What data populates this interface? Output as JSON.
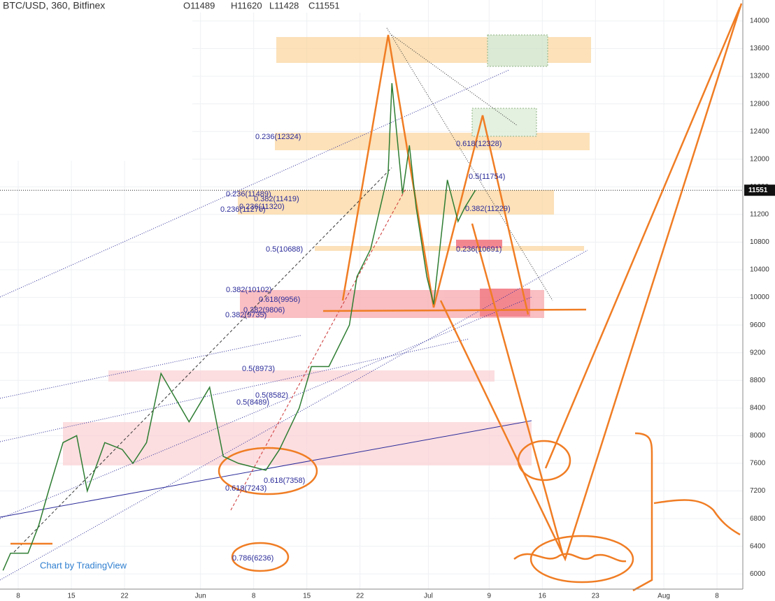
{
  "chart_data": {
    "type": "line",
    "title": "BTC/USD, 360, Bitfinex",
    "ohlc": [
      "O11489",
      "H11620",
      "L11428",
      "C11551"
    ],
    "watermark": "Chart by TradingView",
    "x": [
      -2,
      -1,
      1.3,
      2.7,
      4,
      5.9,
      7.7,
      9.1,
      11.4,
      13.7,
      15.1,
      16.9,
      18.8,
      22.5,
      25.2,
      27,
      29,
      32.6,
      34.4,
      37,
      38.6,
      40.9,
      43.6,
      44.6,
      46.4,
      48.7,
      49.2,
      50.6,
      51.5,
      52.4,
      53.8,
      54.7,
      55.8,
      56.5,
      57.9,
      58.8,
      60.2
    ],
    "values": [
      6050,
      6300,
      6300,
      6700,
      7200,
      7900,
      8000,
      7200,
      7900,
      7800,
      7600,
      7900,
      8900,
      8200,
      8700,
      7700,
      7600,
      7500,
      7800,
      8400,
      9000,
      9000,
      9600,
      10300,
      10700,
      11800,
      13100,
      11500,
      12200,
      11300,
      10300,
      9900,
      11000,
      11700,
      11100,
      11300,
      11551
    ],
    "color": "#2e7d32",
    "last_price": 11551,
    "xlim": [
      -2.394,
      95.4
    ],
    "xticks": [
      {
        "value": 0,
        "label": "8"
      },
      {
        "value": 7,
        "label": "15"
      },
      {
        "value": 14,
        "label": "22"
      },
      {
        "value": 24,
        "label": "Jun"
      },
      {
        "value": 31,
        "label": "8"
      },
      {
        "value": 38,
        "label": "15"
      },
      {
        "value": 45,
        "label": "22"
      },
      {
        "value": 54,
        "label": "Jul"
      },
      {
        "value": 62,
        "label": "9"
      },
      {
        "value": 69,
        "label": "16"
      },
      {
        "value": 76,
        "label": "23"
      },
      {
        "value": 85,
        "label": "Aug"
      },
      {
        "value": 92,
        "label": "8"
      }
    ],
    "ylim": [
      5780,
      14303
    ],
    "yticks": [
      6000,
      6400,
      6800,
      7200,
      7600,
      8000,
      8400,
      8800,
      9200,
      9600,
      10000,
      10400,
      10800,
      11200,
      11600,
      12000,
      12400,
      12800,
      13200,
      13600,
      14000
    ],
    "annotations": [
      "0.236(12324)",
      "0.618(12328)",
      "0.5(11754)",
      "0.236(11489)",
      "0.382(11419)",
      "0.236(11320)",
      "0.236(11276)",
      "0.382(11229)",
      "0.5(10688)",
      "0.236(10691)",
      "0.382(10102)",
      "0.618(9956)",
      "0.382(9806)",
      "0.382(9735)",
      "0.5(8973)",
      "0.5(8582)",
      "0.5(8489)",
      "0.618(7358)",
      "0.618(7243)",
      "0.786(6236)"
    ],
    "grid": true
  }
}
